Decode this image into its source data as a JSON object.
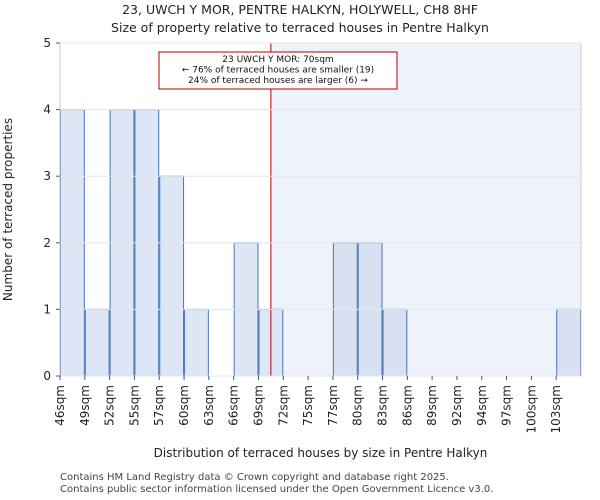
{
  "title_line1": "23, UWCH Y MOR, PENTRE HALKYN, HOLYWELL, CH8 8HF",
  "title_line2": "Size of property relative to terraced houses in Pentre Halkyn",
  "footer_line1": "Contains HM Land Registry data © Crown copyright and database right 2025.",
  "footer_line2": "Contains public sector information licensed under the Open Government Licence v3.0.",
  "chart_data": {
    "type": "bar",
    "title": "Size of property relative to terraced houses in Pentre Halkyn",
    "xlabel": "Distribution of terraced houses by size in Pentre Halkyn",
    "ylabel": "Number of terraced properties",
    "categories": [
      "46sqm",
      "49sqm",
      "52sqm",
      "55sqm",
      "57sqm",
      "60sqm",
      "63sqm",
      "66sqm",
      "69sqm",
      "72sqm",
      "75sqm",
      "77sqm",
      "80sqm",
      "83sqm",
      "86sqm",
      "89sqm",
      "92sqm",
      "94sqm",
      "97sqm",
      "100sqm",
      "103sqm"
    ],
    "values": [
      4,
      1,
      4,
      4,
      3,
      1,
      0,
      2,
      1,
      0,
      0,
      2,
      2,
      1,
      0,
      0,
      0,
      0,
      0,
      0,
      1
    ],
    "ylim": [
      0,
      5
    ],
    "yticks": [
      0,
      1,
      2,
      3,
      4,
      5
    ],
    "marker": {
      "value_sqm": 70,
      "bin_position": 8.5
    },
    "annotation": {
      "line1": "23 UWCH Y MOR: 70sqm",
      "line2": "← 76% of terraced houses are smaller (19)",
      "line3": "24% of terraced houses are larger (6) →"
    },
    "colors": {
      "bar_left": "#dce6f5",
      "bar_right": "#d7e1f2",
      "bar_edge": "#4a76b8",
      "shade": "#eef2fa",
      "marker": "#b30000"
    }
  }
}
